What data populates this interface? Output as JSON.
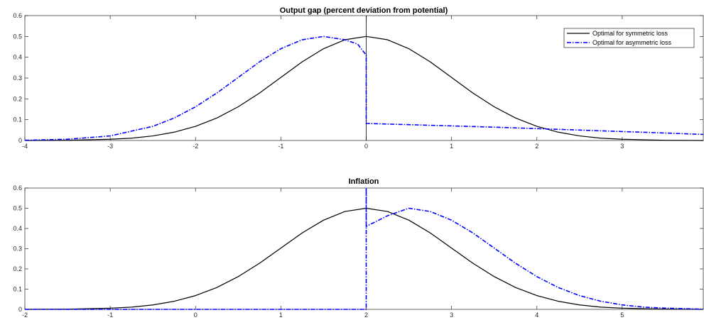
{
  "chart_data": [
    {
      "type": "line",
      "title": "Output gap (percent deviation from potential)",
      "xlabel": "",
      "ylabel": "",
      "xlim": [
        -4,
        3.95
      ],
      "ylim": [
        0,
        0.6
      ],
      "xticks": [
        -4,
        -3,
        -2,
        -1,
        0,
        1,
        2,
        3
      ],
      "yticks": [
        0,
        0.1,
        0.2,
        0.3,
        0.4,
        0.5,
        0.6
      ],
      "grid": false,
      "legend_position": "top-right",
      "reference_line_x": 0,
      "series": [
        {
          "name": "Optimal for symmetric loss",
          "color": "#000000",
          "style": "solid",
          "x": [
            -4,
            -3.5,
            -3,
            -2.75,
            -2.5,
            -2.25,
            -2,
            -1.75,
            -1.5,
            -1.25,
            -1,
            -0.75,
            -0.5,
            -0.25,
            0,
            0.25,
            0.5,
            0.75,
            1,
            1.25,
            1.5,
            1.75,
            2,
            2.25,
            2.5,
            2.75,
            3,
            3.5,
            3.95
          ],
          "y": [
            0.0,
            0.001,
            0.006,
            0.011,
            0.022,
            0.04,
            0.068,
            0.108,
            0.162,
            0.228,
            0.303,
            0.378,
            0.441,
            0.484,
            0.5,
            0.484,
            0.441,
            0.378,
            0.303,
            0.228,
            0.162,
            0.108,
            0.068,
            0.04,
            0.022,
            0.011,
            0.006,
            0.001,
            0.0
          ]
        },
        {
          "name": "Optimal for asymmetric loss",
          "color": "#0000ff",
          "style": "dash-dot",
          "x": [
            -4,
            -3.5,
            -3,
            -2.5,
            -2.25,
            -2,
            -1.75,
            -1.5,
            -1.25,
            -1,
            -0.75,
            -0.5,
            -0.25,
            -0.1,
            0,
            0,
            0,
            0.5,
            1,
            1.5,
            2,
            2.5,
            3,
            3.5,
            3.95
          ],
          "y": [
            0.001,
            0.006,
            0.022,
            0.068,
            0.108,
            0.162,
            0.228,
            0.303,
            0.378,
            0.441,
            0.484,
            0.5,
            0.484,
            0.463,
            0.41,
            0.41,
            0.082,
            0.076,
            0.07,
            0.064,
            0.057,
            0.05,
            0.043,
            0.036,
            0.029
          ]
        }
      ]
    },
    {
      "type": "line",
      "title": "Inflation",
      "xlabel": "",
      "ylabel": "",
      "xlim": [
        -2,
        5.95
      ],
      "ylim": [
        0,
        0.6
      ],
      "xticks": [
        -2,
        -1,
        0,
        1,
        2,
        3,
        4,
        5
      ],
      "yticks": [
        0,
        0.1,
        0.2,
        0.3,
        0.4,
        0.5,
        0.6
      ],
      "grid": false,
      "series": [
        {
          "name": "Optimal for symmetric loss",
          "color": "#000000",
          "style": "solid",
          "x": [
            -2,
            -1.5,
            -1,
            -0.75,
            -0.5,
            -0.25,
            0,
            0.25,
            0.5,
            0.75,
            1,
            1.25,
            1.5,
            1.75,
            2,
            2.25,
            2.5,
            2.75,
            3,
            3.25,
            3.5,
            3.75,
            4,
            4.25,
            4.5,
            4.75,
            5,
            5.5,
            5.95
          ],
          "y": [
            0.0,
            0.001,
            0.006,
            0.011,
            0.022,
            0.04,
            0.068,
            0.108,
            0.162,
            0.228,
            0.303,
            0.378,
            0.441,
            0.484,
            0.5,
            0.484,
            0.441,
            0.378,
            0.303,
            0.228,
            0.162,
            0.108,
            0.068,
            0.04,
            0.022,
            0.011,
            0.006,
            0.001,
            0.0
          ]
        },
        {
          "name": "Optimal for asymmetric loss",
          "color": "#0000ff",
          "style": "dash-dot",
          "x": [
            -2,
            1.99,
            2,
            2,
            2,
            2,
            2.25,
            2.5,
            2.75,
            3,
            3.25,
            3.5,
            3.75,
            4,
            4.25,
            4.5,
            4.75,
            5,
            5.25,
            5.5,
            5.95
          ],
          "y": [
            0.0,
            0.0,
            0.0,
            0.6,
            0.6,
            0.41,
            0.463,
            0.5,
            0.484,
            0.441,
            0.378,
            0.303,
            0.228,
            0.162,
            0.108,
            0.068,
            0.04,
            0.022,
            0.011,
            0.006,
            0.001
          ]
        }
      ]
    }
  ]
}
